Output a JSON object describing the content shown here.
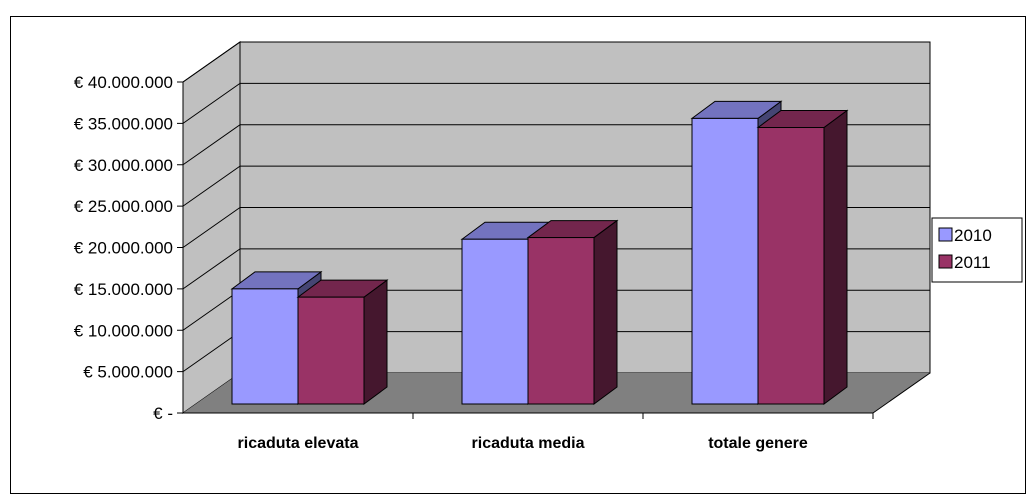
{
  "chart_data": {
    "type": "bar",
    "title": "",
    "xlabel": "",
    "ylabel": "",
    "categories": [
      "ricaduta elevata",
      "ricaduta media",
      "totale genere"
    ],
    "series": [
      {
        "name": "2010",
        "values": [
          15000000,
          21000000,
          35600000
        ],
        "color": "#9999FF"
      },
      {
        "name": "2011",
        "values": [
          14000000,
          21200000,
          34500000
        ],
        "color": "#993366"
      }
    ],
    "ylim": [
      0,
      40000000
    ],
    "yticks": [
      0,
      5000000,
      10000000,
      15000000,
      20000000,
      25000000,
      30000000,
      35000000,
      40000000
    ],
    "ytick_labels": [
      "€ -",
      "€ 5.000.000",
      "€ 10.000.000",
      "€ 15.000.000",
      "€ 20.000.000",
      "€ 25.000.000",
      "€ 30.000.000",
      "€ 35.000.000",
      "€ 40.000.000"
    ],
    "grid": true,
    "legend_position": "right",
    "three_d": true,
    "wall_color": "#C0C0C0",
    "floor_color": "#808080"
  }
}
